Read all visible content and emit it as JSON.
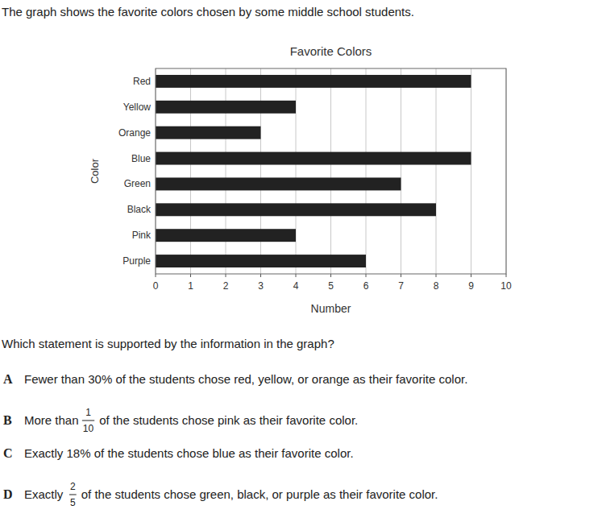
{
  "intro": "The graph shows the favorite colors chosen by some middle school students.",
  "chart_data": {
    "type": "bar",
    "title": "Favorite Colors",
    "orientation": "horizontal",
    "x_label": "Number",
    "y_label": "Color",
    "categories": [
      "Red",
      "Yellow",
      "Orange",
      "Blue",
      "Green",
      "Black",
      "Pink",
      "Purple"
    ],
    "values": [
      9,
      4,
      3,
      9,
      7,
      8,
      4,
      6
    ],
    "color": "#222222",
    "xlim": [
      0,
      10
    ],
    "xticks": [
      0,
      1,
      2,
      3,
      4,
      5,
      6,
      7,
      8,
      9,
      10
    ],
    "grid": true
  },
  "question": "Which statement is supported by the information in the graph?",
  "options": [
    {
      "letter": "A",
      "text": "Fewer than 30% of the students chose red, yellow, or orange as their favorite color."
    },
    {
      "letter": "B",
      "before": "More than",
      "fraction": {
        "numerator": "1",
        "denominator": "10"
      },
      "after": "of the students chose pink as their favorite color."
    },
    {
      "letter": "C",
      "text": "Exactly 18% of the students chose blue as their favorite color."
    },
    {
      "letter": "D",
      "before": "Exactly",
      "fraction": {
        "numerator": "2",
        "denominator": "5"
      },
      "after": "of the students chose green, black, or purple as their favorite color."
    }
  ]
}
